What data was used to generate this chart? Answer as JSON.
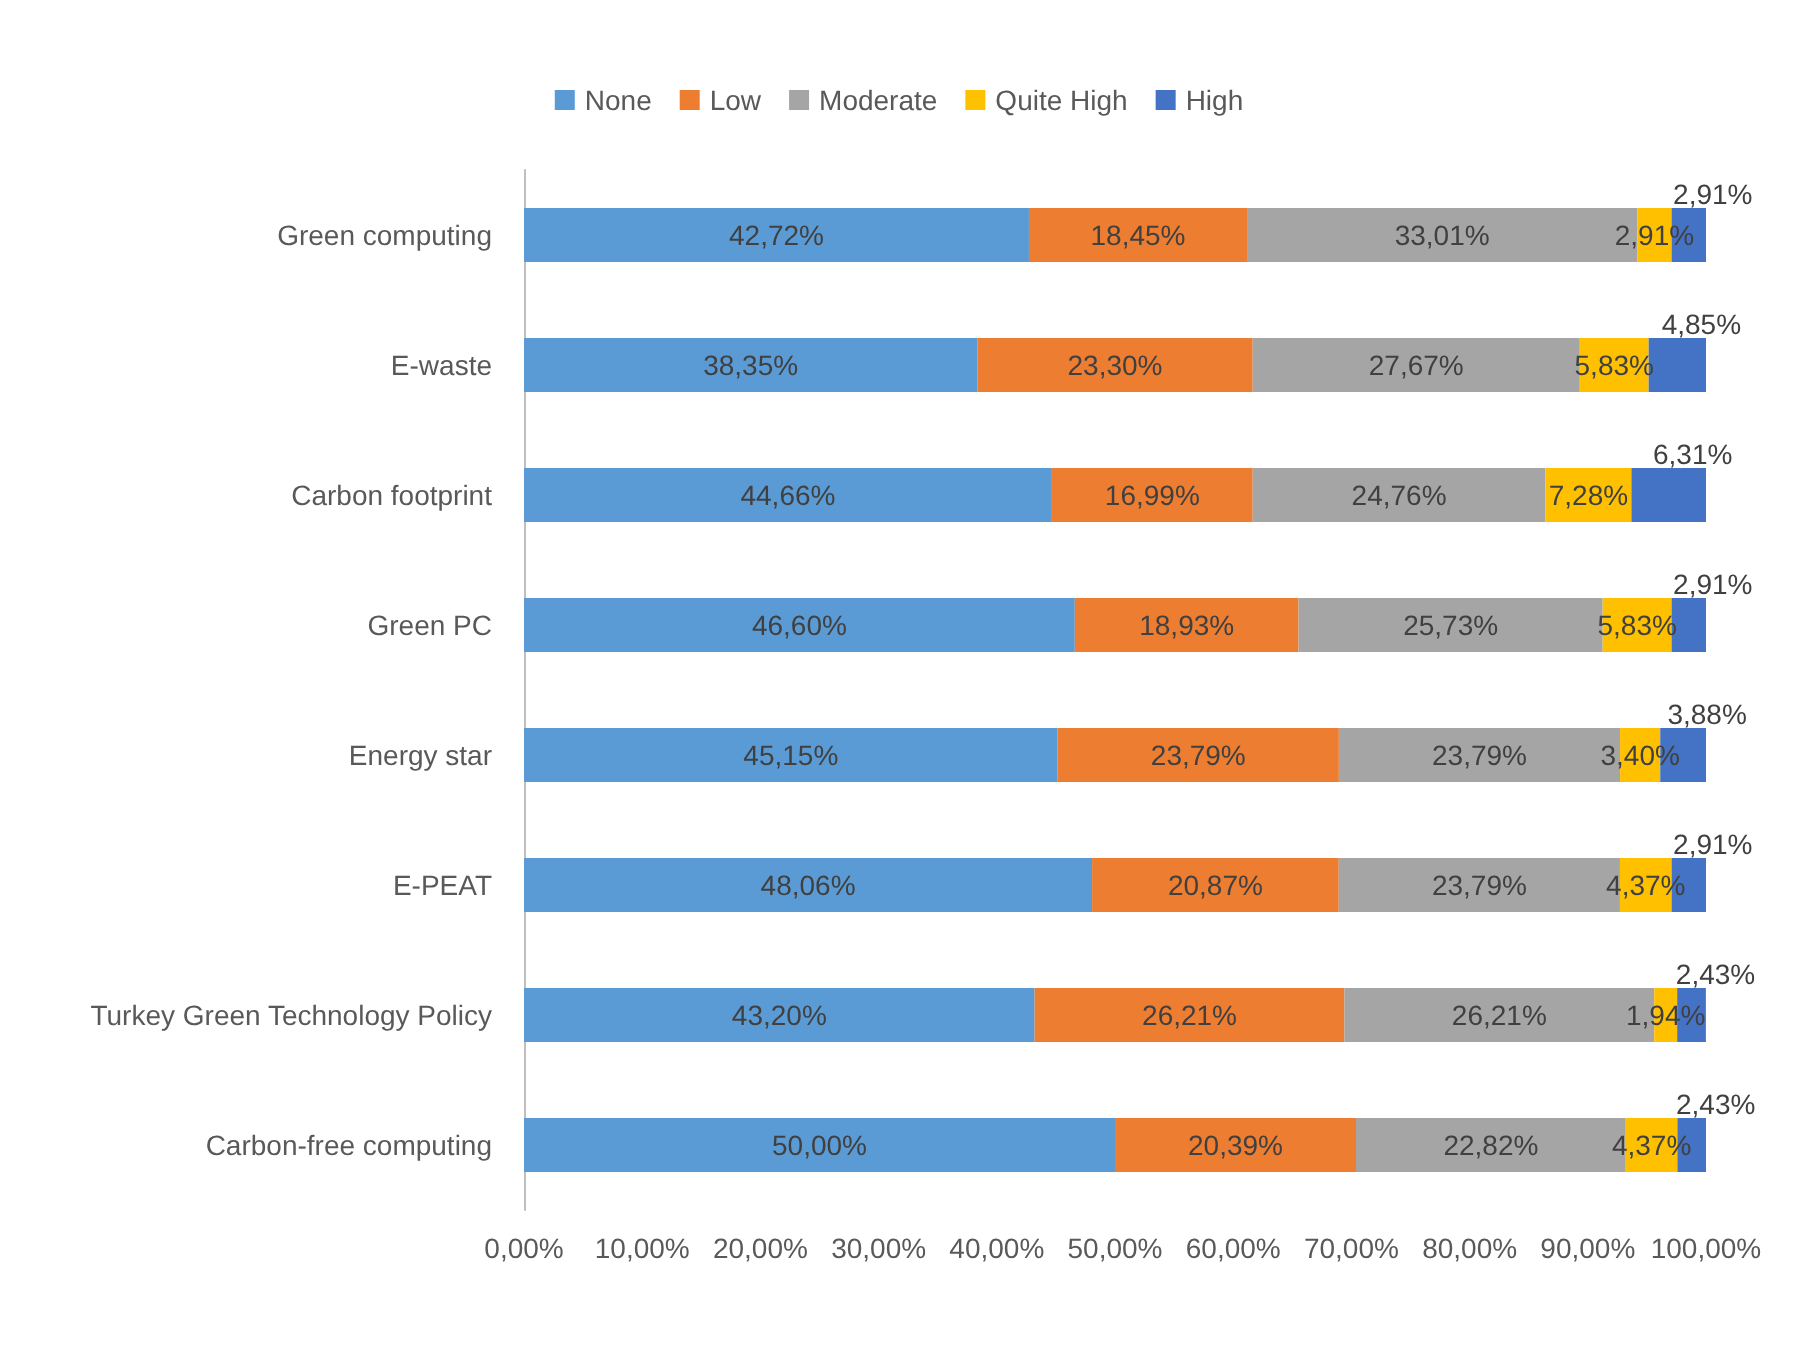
{
  "chart_data": {
    "type": "bar",
    "orientation": "horizontal",
    "stacked": true,
    "categories": [
      "Green computing",
      "E-waste",
      "Carbon footprint",
      "Green PC",
      "Energy star",
      "E-PEAT",
      "Turkey Green Technology Policy",
      "Carbon-free computing"
    ],
    "series": [
      {
        "name": "None",
        "color": "#5b9bd5",
        "values": [
          42.72,
          38.35,
          44.66,
          46.6,
          45.15,
          48.06,
          43.2,
          50.0
        ],
        "value_labels": [
          "42,72%",
          "38,35%",
          "44,66%",
          "46,60%",
          "45,15%",
          "48,06%",
          "43,20%",
          "50,00%"
        ]
      },
      {
        "name": "Low",
        "color": "#ed7d31",
        "values": [
          18.45,
          23.3,
          16.99,
          18.93,
          23.79,
          20.87,
          26.21,
          20.39
        ],
        "value_labels": [
          "18,45%",
          "23,30%",
          "16,99%",
          "18,93%",
          "23,79%",
          "20,87%",
          "26,21%",
          "20,39%"
        ]
      },
      {
        "name": "Moderate",
        "color": "#a5a5a5",
        "values": [
          33.01,
          27.67,
          24.76,
          25.73,
          23.79,
          23.79,
          26.21,
          22.82
        ],
        "value_labels": [
          "33,01%",
          "27,67%",
          "24,76%",
          "25,73%",
          "23,79%",
          "23,79%",
          "26,21%",
          "22,82%"
        ]
      },
      {
        "name": "Quite High",
        "color": "#ffc000",
        "values": [
          2.91,
          5.83,
          7.28,
          5.83,
          3.4,
          4.37,
          1.94,
          4.37
        ],
        "value_labels": [
          "2,91%",
          "5,83%",
          "7,28%",
          "5,83%",
          "3,40%",
          "4,37%",
          "1,94%",
          "4,37%"
        ]
      },
      {
        "name": "High",
        "color": "#4472c4",
        "values": [
          2.91,
          4.85,
          6.31,
          2.91,
          3.88,
          2.91,
          2.43,
          2.43
        ],
        "value_labels": [
          "2,91%",
          "4,85%",
          "6,31%",
          "2,91%",
          "3,88%",
          "2,91%",
          "2,43%",
          "2,43%"
        ]
      }
    ],
    "xlim": [
      0,
      100
    ],
    "xticks": [
      {
        "value": 0,
        "label": "0,00%"
      },
      {
        "value": 10,
        "label": "10,00%"
      },
      {
        "value": 20,
        "label": "20,00%"
      },
      {
        "value": 30,
        "label": "30,00%"
      },
      {
        "value": 40,
        "label": "40,00%"
      },
      {
        "value": 50,
        "label": "50,00%"
      },
      {
        "value": 60,
        "label": "60,00%"
      },
      {
        "value": 70,
        "label": "70,00%"
      },
      {
        "value": 80,
        "label": "80,00%"
      },
      {
        "value": 90,
        "label": "90,00%"
      },
      {
        "value": 100,
        "label": "100,00%"
      }
    ],
    "grid": false,
    "legend": "top"
  }
}
